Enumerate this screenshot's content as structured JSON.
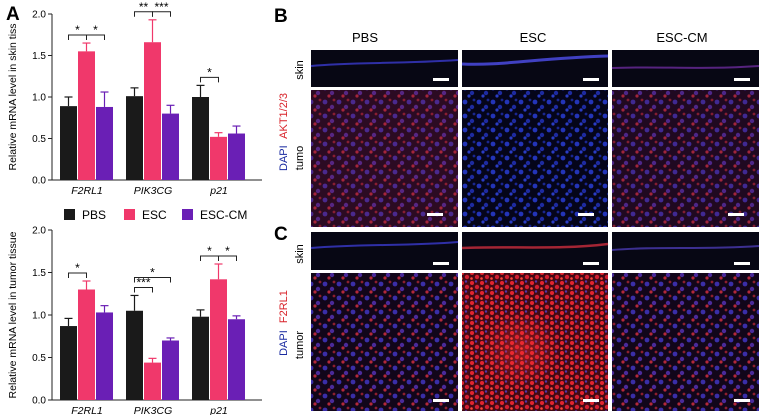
{
  "panels": {
    "A": "A",
    "B": "B",
    "C": "C"
  },
  "colors": {
    "PBS": "#1a1a1a",
    "ESC": "#f0386b",
    "ESC-CM": "#6a1fb5",
    "dapi": "#1a2aa0",
    "red_stain": "#d8232a"
  },
  "legend": [
    "PBS",
    "ESC",
    "ESC-CM"
  ],
  "chart_data": [
    {
      "type": "bar",
      "ylabel": "Relative mRNA level in skin tiss",
      "categories": [
        "F2RL1",
        "PIK3CG",
        "p21"
      ],
      "ylim": [
        0,
        2.0
      ],
      "yticks": [
        "0.0",
        "0.5",
        "1.0",
        "1.5",
        "2.0"
      ],
      "series": [
        {
          "name": "PBS",
          "values": [
            0.89,
            1.01,
            1.0
          ],
          "errors": [
            0.11,
            0.1,
            0.14
          ]
        },
        {
          "name": "ESC",
          "values": [
            1.55,
            1.66,
            0.52
          ],
          "errors": [
            0.1,
            0.27,
            0.05
          ]
        },
        {
          "name": "ESC-CM",
          "values": [
            0.88,
            0.8,
            0.56
          ],
          "errors": [
            0.18,
            0.1,
            0.09
          ]
        }
      ],
      "significance": [
        {
          "label": "*",
          "from": 0,
          "to": 1,
          "group": 0
        },
        {
          "label": "*",
          "from": 1,
          "to": 2,
          "group": 0
        },
        {
          "label": "**",
          "from": 0,
          "to": 1,
          "group": 1
        },
        {
          "label": "***",
          "from": 1,
          "to": 2,
          "group": 1
        },
        {
          "label": "*",
          "from": 0,
          "to": 1,
          "group": 2
        }
      ]
    },
    {
      "type": "bar",
      "ylabel": "Relative mRNA level in tumor tissue",
      "categories": [
        "F2RL1",
        "PIK3CG",
        "p21"
      ],
      "ylim": [
        0,
        2.0
      ],
      "yticks": [
        "0.0",
        "0.5",
        "1.0",
        "1.5",
        "2.0"
      ],
      "series": [
        {
          "name": "PBS",
          "values": [
            0.87,
            1.05,
            0.98
          ],
          "errors": [
            0.09,
            0.18,
            0.08
          ]
        },
        {
          "name": "ESC",
          "values": [
            1.3,
            0.44,
            1.42
          ],
          "errors": [
            0.1,
            0.05,
            0.18
          ]
        },
        {
          "name": "ESC-CM",
          "values": [
            1.03,
            0.7,
            0.95
          ],
          "errors": [
            0.08,
            0.03,
            0.04
          ]
        }
      ],
      "significance": [
        {
          "label": "*",
          "from": 0,
          "to": 1,
          "group": 0
        },
        {
          "label": "***",
          "from": 0,
          "to": 1,
          "group": 1
        },
        {
          "label": "*",
          "from": 0,
          "to": 2,
          "group": 1
        },
        {
          "label": "*",
          "from": 0,
          "to": 1,
          "group": 2
        },
        {
          "label": "*",
          "from": 1,
          "to": 2,
          "group": 2
        }
      ]
    }
  ],
  "micro_b": {
    "columns": [
      "PBS",
      "ESC",
      "ESC-CM"
    ],
    "row_skin": "skin",
    "row_tumor": "tumo",
    "stain_dapi": "DAPI",
    "stain_marker": "AKT1/2/3"
  },
  "micro_c": {
    "row_skin": "skin",
    "row_tumor": "tumor",
    "stain_dapi": "DAPI",
    "stain_marker": "F2RL1"
  }
}
